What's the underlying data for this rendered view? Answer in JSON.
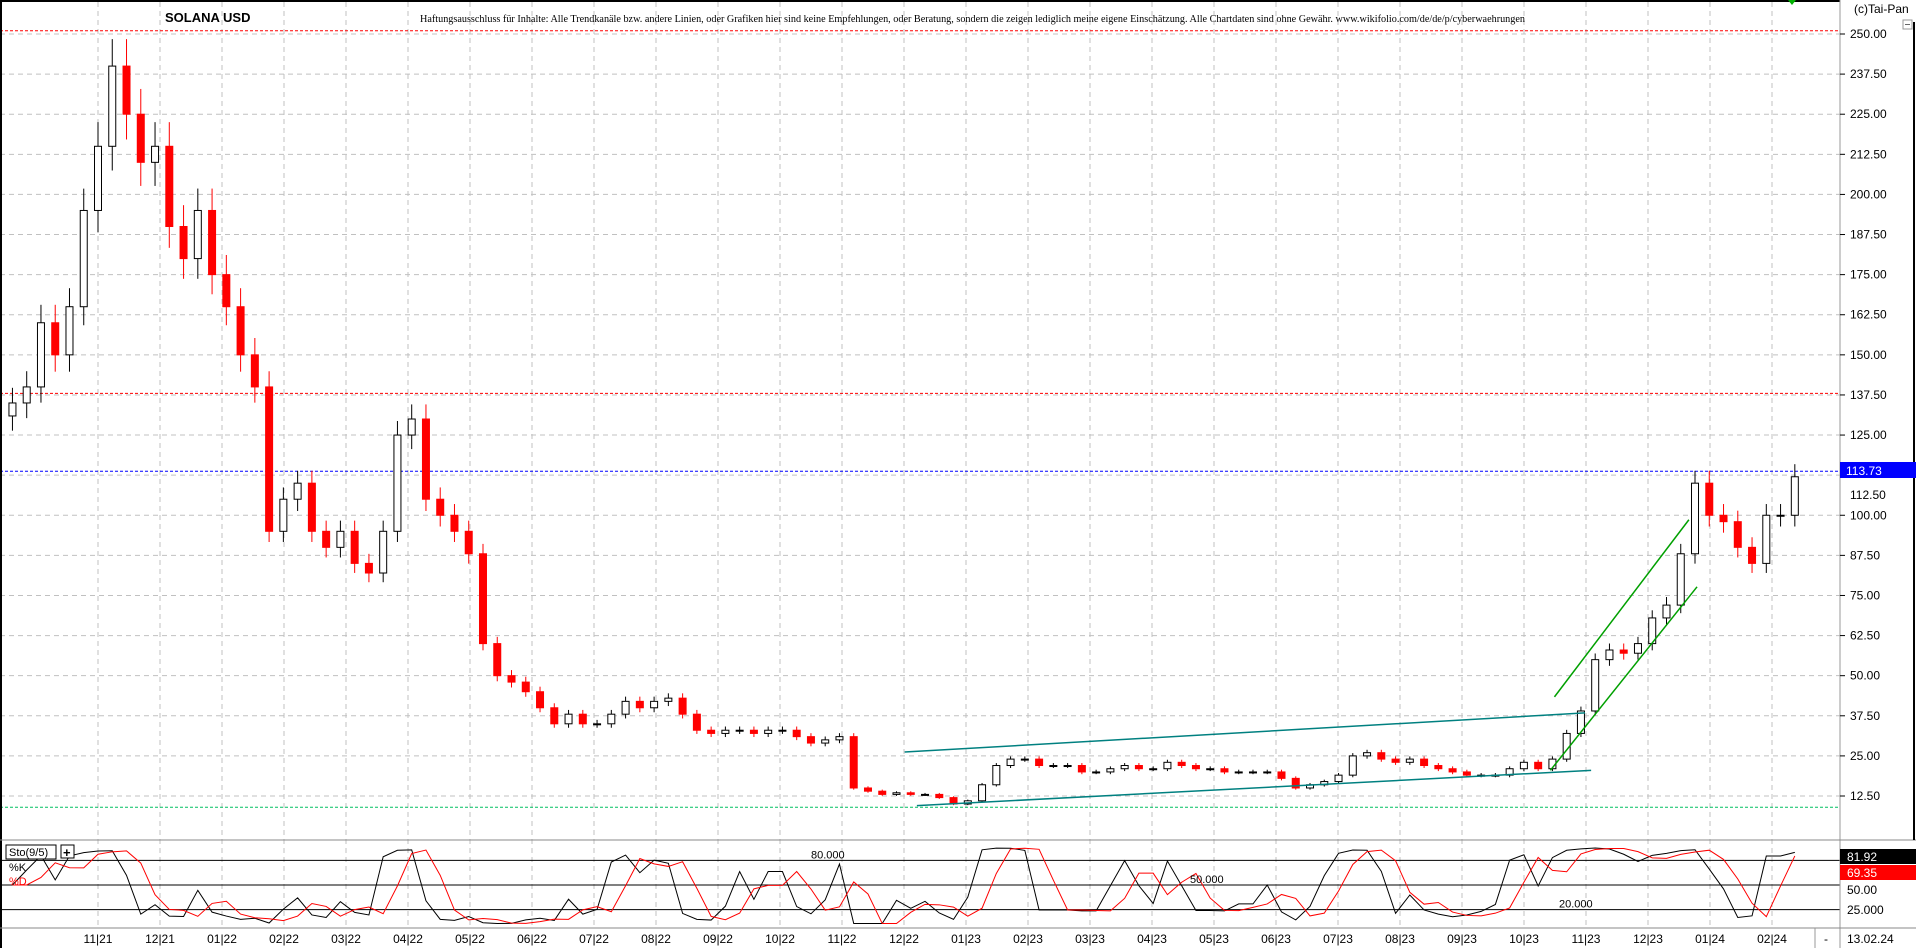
{
  "header": {
    "title": "SOLANA USD",
    "disclaimer": "Haftungsausschluss für Inhalte: Alle Trendkanäle bzw. andere Linien, oder Grafiken hier sind keine Empfehlungen, oder Beratung, sondern die zeigen lediglich meine eigene Einschätzung. Alle Chartdaten sind ohne Gewähr. www.wikifolio.com/de/de/p/cyberwaehrungen",
    "copyright": "(c)Tai-Pan"
  },
  "colors": {
    "up": "#000000",
    "down": "#ff0000",
    "grid": "#c0c0c0",
    "teal": "#008080",
    "green": "#00a000",
    "blue": "#0000ff",
    "red": "#ff0000"
  },
  "chart_data": [
    {
      "type": "candlestick",
      "title": "SOLANA USD",
      "ylim": [
        6,
        256
      ],
      "y_ticks": [
        "250.00",
        "237.50",
        "225.00",
        "212.50",
        "200.00",
        "187.50",
        "175.00",
        "162.50",
        "150.00",
        "137.50",
        "125.00",
        "112.50",
        "100.00",
        "87.50",
        "75.00",
        "62.50",
        "50.00",
        "37.50",
        "25.00",
        "12.50"
      ],
      "x_ticks": [
        "11|21",
        "12|21",
        "01|22",
        "02|22",
        "03|22",
        "04|22",
        "05|22",
        "06|22",
        "07|22",
        "08|22",
        "09|22",
        "10|22",
        "11|22",
        "12|22",
        "01|23",
        "02|23",
        "03|23",
        "04|23",
        "05|23",
        "06|23",
        "07|23",
        "08|23",
        "09|23",
        "10|23",
        "11|23",
        "12|23",
        "01|24",
        "02|24"
      ],
      "last_date": "13.02.24",
      "last_price": "113.73",
      "grid": true,
      "series": [
        [
          "2021-09-20",
          135
        ],
        [
          "2021-09-27",
          140
        ],
        [
          "2021-10-04",
          160
        ],
        [
          "2021-10-11",
          150
        ],
        [
          "2021-10-18",
          165
        ],
        [
          "2021-10-25",
          195
        ],
        [
          "2021-11-01",
          215
        ],
        [
          "2021-11-08",
          240
        ],
        [
          "2021-11-15",
          225
        ],
        [
          "2021-11-22",
          210
        ],
        [
          "2021-11-29",
          215
        ],
        [
          "2021-12-06",
          190
        ],
        [
          "2021-12-13",
          180
        ],
        [
          "2021-12-20",
          195
        ],
        [
          "2021-12-27",
          175
        ],
        [
          "2022-01-03",
          165
        ],
        [
          "2022-01-10",
          150
        ],
        [
          "2022-01-17",
          140
        ],
        [
          "2022-01-24",
          95
        ],
        [
          "2022-01-31",
          105
        ],
        [
          "2022-02-07",
          110
        ],
        [
          "2022-02-14",
          95
        ],
        [
          "2022-02-21",
          90
        ],
        [
          "2022-02-28",
          95
        ],
        [
          "2022-03-07",
          85
        ],
        [
          "2022-03-14",
          82
        ],
        [
          "2022-03-21",
          95
        ],
        [
          "2022-03-28",
          125
        ],
        [
          "2022-04-04",
          130
        ],
        [
          "2022-04-11",
          105
        ],
        [
          "2022-04-18",
          100
        ],
        [
          "2022-04-25",
          95
        ],
        [
          "2022-05-02",
          88
        ],
        [
          "2022-05-09",
          60
        ],
        [
          "2022-05-16",
          50
        ],
        [
          "2022-05-23",
          48
        ],
        [
          "2022-05-30",
          45
        ],
        [
          "2022-06-06",
          40
        ],
        [
          "2022-06-13",
          35
        ],
        [
          "2022-06-20",
          38
        ],
        [
          "2022-06-27",
          35
        ],
        [
          "2022-07-04",
          35
        ],
        [
          "2022-07-11",
          38
        ],
        [
          "2022-07-18",
          42
        ],
        [
          "2022-07-25",
          40
        ],
        [
          "2022-08-01",
          42
        ],
        [
          "2022-08-08",
          43
        ],
        [
          "2022-08-15",
          38
        ],
        [
          "2022-08-22",
          33
        ],
        [
          "2022-08-29",
          32
        ],
        [
          "2022-09-05",
          33
        ],
        [
          "2022-09-12",
          33
        ],
        [
          "2022-09-19",
          32
        ],
        [
          "2022-09-26",
          33
        ],
        [
          "2022-10-03",
          33
        ],
        [
          "2022-10-10",
          31
        ],
        [
          "2022-10-17",
          29
        ],
        [
          "2022-10-24",
          30
        ],
        [
          "2022-10-31",
          31
        ],
        [
          "2022-11-07",
          15
        ],
        [
          "2022-11-14",
          14
        ],
        [
          "2022-11-21",
          13
        ],
        [
          "2022-11-28",
          13.5
        ],
        [
          "2022-12-05",
          13
        ],
        [
          "2022-12-12",
          13
        ],
        [
          "2022-12-19",
          12
        ],
        [
          "2022-12-26",
          10
        ],
        [
          "2023-01-02",
          11
        ],
        [
          "2023-01-09",
          16
        ],
        [
          "2023-01-16",
          22
        ],
        [
          "2023-01-23",
          24
        ],
        [
          "2023-01-30",
          24
        ],
        [
          "2023-02-06",
          22
        ],
        [
          "2023-02-13",
          22
        ],
        [
          "2023-02-20",
          22
        ],
        [
          "2023-02-27",
          20
        ],
        [
          "2023-03-06",
          20
        ],
        [
          "2023-03-13",
          21
        ],
        [
          "2023-03-20",
          22
        ],
        [
          "2023-03-27",
          21
        ],
        [
          "2023-04-03",
          21
        ],
        [
          "2023-04-10",
          23
        ],
        [
          "2023-04-17",
          22
        ],
        [
          "2023-04-24",
          21
        ],
        [
          "2023-05-01",
          21
        ],
        [
          "2023-05-08",
          20
        ],
        [
          "2023-05-15",
          20
        ],
        [
          "2023-05-22",
          20
        ],
        [
          "2023-05-29",
          20
        ],
        [
          "2023-06-05",
          18
        ],
        [
          "2023-06-12",
          15
        ],
        [
          "2023-06-19",
          16
        ],
        [
          "2023-06-26",
          17
        ],
        [
          "2023-07-03",
          19
        ],
        [
          "2023-07-10",
          25
        ],
        [
          "2023-07-17",
          26
        ],
        [
          "2023-07-24",
          24
        ],
        [
          "2023-07-31",
          23
        ],
        [
          "2023-08-07",
          24
        ],
        [
          "2023-08-14",
          22
        ],
        [
          "2023-08-21",
          21
        ],
        [
          "2023-08-28",
          20
        ],
        [
          "2023-09-04",
          19
        ],
        [
          "2023-09-11",
          19
        ],
        [
          "2023-09-18",
          19
        ],
        [
          "2023-09-25",
          21
        ],
        [
          "2023-10-02",
          23
        ],
        [
          "2023-10-09",
          21
        ],
        [
          "2023-10-16",
          24
        ],
        [
          "2023-10-23",
          32
        ],
        [
          "2023-10-30",
          39
        ],
        [
          "2023-11-06",
          55
        ],
        [
          "2023-11-13",
          58
        ],
        [
          "2023-11-20",
          57
        ],
        [
          "2023-11-27",
          60
        ],
        [
          "2023-12-04",
          68
        ],
        [
          "2023-12-11",
          72
        ],
        [
          "2023-12-18",
          88
        ],
        [
          "2023-12-25",
          110
        ],
        [
          "2024-01-01",
          100
        ],
        [
          "2024-01-08",
          98
        ],
        [
          "2024-01-15",
          90
        ],
        [
          "2024-01-22",
          85
        ],
        [
          "2024-01-29",
          100
        ],
        [
          "2024-02-05",
          100
        ],
        [
          "2024-02-12",
          112
        ]
      ],
      "horizontal_lines": [
        {
          "price": 251,
          "color": "#ff0000",
          "style": "dashed"
        },
        {
          "price": 138,
          "color": "#ff0000",
          "style": "dashed"
        },
        {
          "price": 113.73,
          "color": "#0000ff",
          "style": "dashed"
        },
        {
          "price": 9,
          "color": "#00c060",
          "style": "dashed"
        }
      ],
      "trend_lines": [
        {
          "from": [
            "2022-12-02",
            26.2
          ],
          "to": [
            "2023-11-01",
            38.4
          ],
          "color": "#008080"
        },
        {
          "from": [
            "2022-12-08",
            9.5
          ],
          "to": [
            "2023-11-04",
            20.5
          ],
          "color": "#008080"
        },
        {
          "from": [
            "2023-10-17",
            43.4
          ],
          "to": [
            "2023-12-22",
            98.6
          ],
          "color": "#00a000"
        },
        {
          "from": [
            "2023-10-15",
            20.5
          ],
          "to": [
            "2023-12-26",
            77.7
          ],
          "color": "#00a000"
        }
      ]
    },
    {
      "type": "line",
      "indicator": "Sto(9/5)",
      "legend": [
        "%K",
        "%D"
      ],
      "ylim": [
        0,
        100
      ],
      "levels": [
        {
          "value": 80,
          "label": "80.000"
        },
        {
          "value": 50,
          "label": "50.000"
        },
        {
          "value": 20,
          "label": "20.000"
        }
      ],
      "axis_labels": [
        "50.00",
        "25.000"
      ],
      "last_k": "81.92",
      "last_d": "69.35"
    }
  ]
}
